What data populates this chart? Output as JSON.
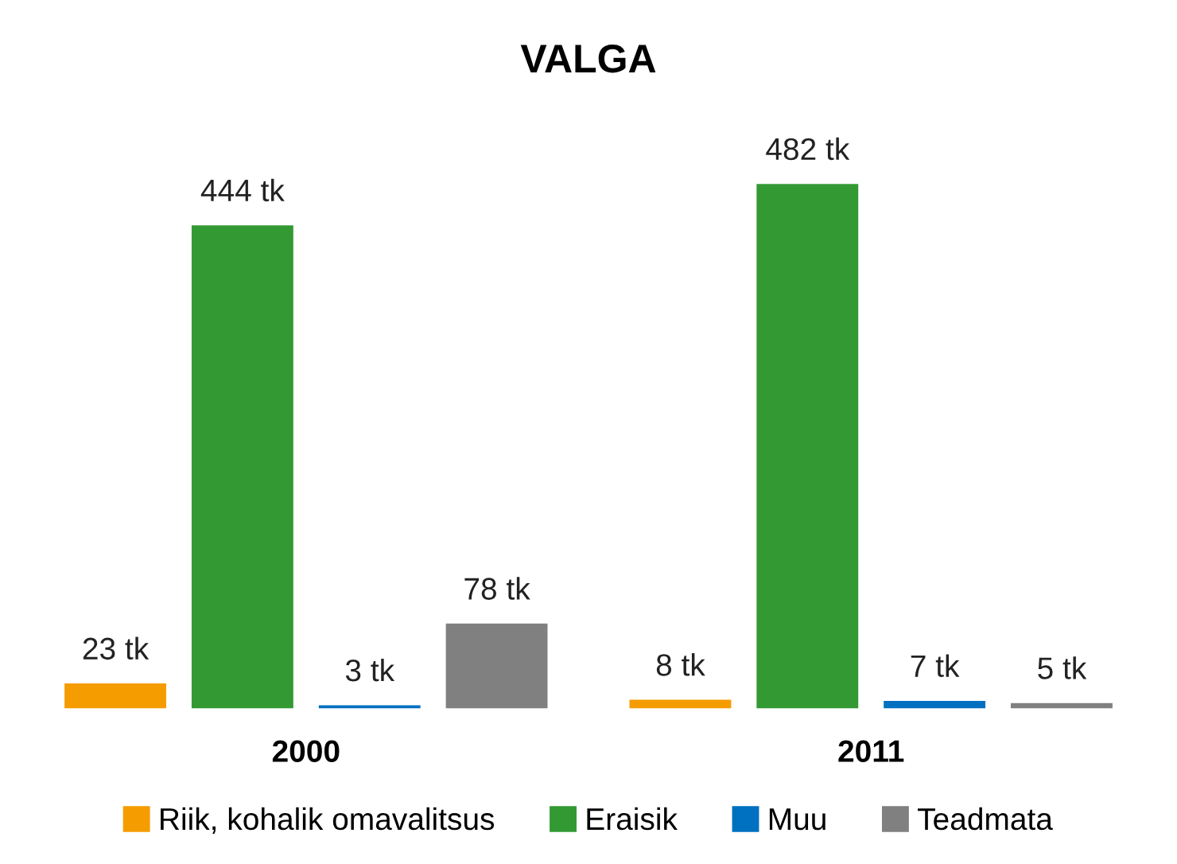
{
  "chart_data": {
    "type": "bar",
    "title": "VALGA",
    "categories": [
      "2000",
      "2011"
    ],
    "series": [
      {
        "name": "Riik, kohalik omavalitsus",
        "color": "#f59c00",
        "values": [
          23,
          8
        ],
        "value_labels": [
          "23 tk",
          "8 tk"
        ]
      },
      {
        "name": "Eraisik",
        "color": "#339933",
        "values": [
          444,
          482
        ],
        "value_labels": [
          "444 tk",
          "482 tk"
        ]
      },
      {
        "name": "Muu",
        "color": "#0070c0",
        "values": [
          3,
          7
        ],
        "value_labels": [
          "3 tk",
          "7 tk"
        ]
      },
      {
        "name": "Teadmata",
        "color": "#808080",
        "values": [
          78,
          5
        ],
        "value_labels": [
          "78 tk",
          "5 tk"
        ]
      }
    ],
    "legend": "bottom",
    "grid": false
  }
}
